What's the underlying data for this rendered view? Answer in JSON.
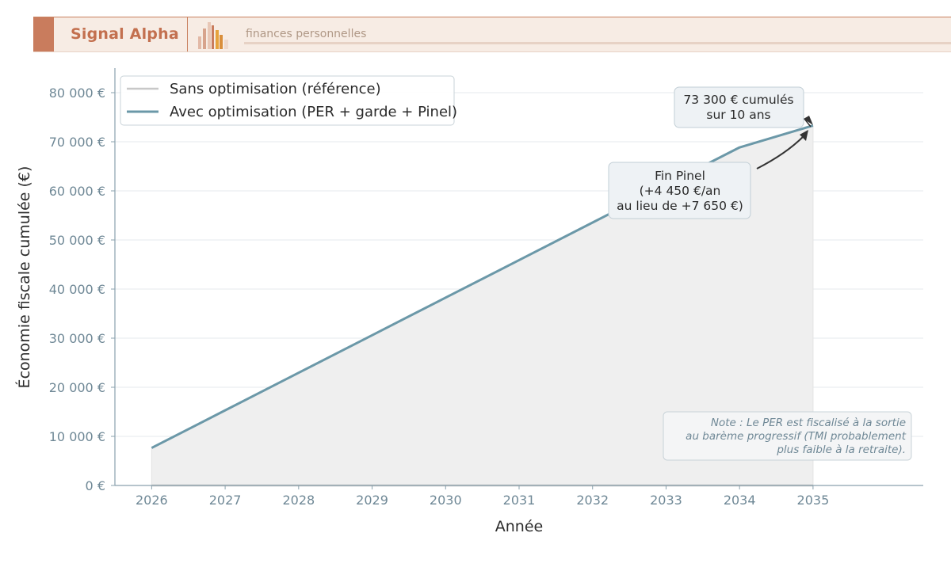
{
  "header": {
    "brand": "Signal Alpha",
    "subtitle": "finances personnelles",
    "logo_icon": "bar-chart-logo-icon"
  },
  "colors": {
    "brand": "#c97c5d",
    "series_opt": "#6b98a8",
    "series_ref": "#c8c8c8",
    "area_fill": "#efefef",
    "axis": "#8aa1ad"
  },
  "chart_data": {
    "type": "line",
    "title": "",
    "xlabel": "Année",
    "ylabel": "Économie fiscale cumulée (€)",
    "x": [
      2026,
      2027,
      2028,
      2029,
      2030,
      2031,
      2032,
      2033,
      2034,
      2035
    ],
    "x_tick_labels": [
      "2026",
      "2027",
      "2028",
      "2029",
      "2030",
      "2031",
      "2032",
      "2033",
      "2034",
      "2035"
    ],
    "xlim": [
      2025.5,
      2036.5
    ],
    "ylim": [
      0,
      85000
    ],
    "y_ticks": [
      0,
      10000,
      20000,
      30000,
      40000,
      50000,
      60000,
      70000,
      80000
    ],
    "y_tick_labels": [
      "0 €",
      "10 000 €",
      "20 000 €",
      "30 000 €",
      "40 000 €",
      "50 000 €",
      "60 000 €",
      "70 000 €",
      "80 000 €"
    ],
    "grid": true,
    "legend_position": "top-left",
    "series": [
      {
        "name": "Sans optimisation (référence)",
        "values": [
          0,
          0,
          0,
          0,
          0,
          0,
          0,
          0,
          0,
          0
        ],
        "color": "#c8c8c8",
        "fill_below": "#efefef"
      },
      {
        "name": "Avec optimisation (PER + garde + Pinel)",
        "values": [
          7650,
          15300,
          22950,
          30600,
          38250,
          45900,
          53550,
          61200,
          68850,
          73300
        ],
        "color": "#6b98a8"
      }
    ],
    "annotations": [
      {
        "lines": [
          "73 300 € cumulés",
          "sur 10 ans"
        ],
        "x": 2035,
        "y": 73300,
        "arrow": true
      },
      {
        "lines": [
          "Fin Pinel",
          "(+4 450 €/an",
          "au lieu de +7 650 €)"
        ],
        "x": 2035,
        "y": 73300,
        "arrow": true
      }
    ],
    "note": [
      "Note : Le PER est fiscalisé à la sortie",
      "au barème progressif (TMI probablement",
      "plus faible à la retraite)."
    ]
  }
}
